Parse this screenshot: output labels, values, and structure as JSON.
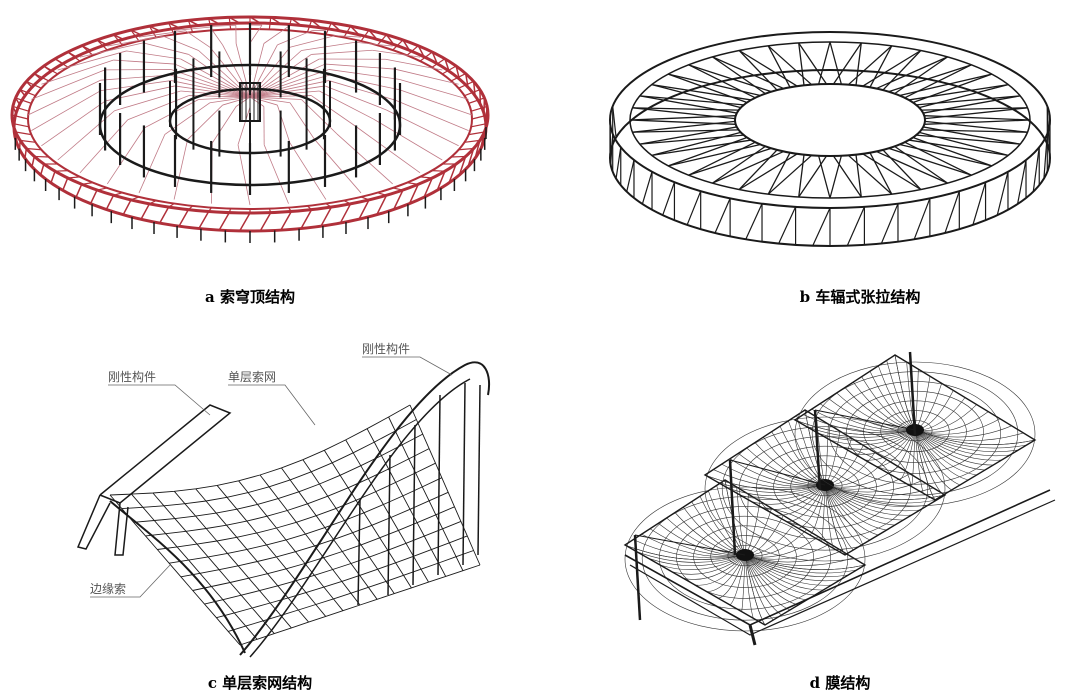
{
  "panels": [
    {
      "id": "a",
      "caption": "a  索穹顶结构"
    },
    {
      "id": "b",
      "caption": "b  车辐式张拉结构"
    },
    {
      "id": "c",
      "caption": "c  单层索网结构",
      "callouts": {
        "rigid_left": "刚性构件",
        "cable_net": "单层索网",
        "rigid_right": "刚性构件",
        "edge_cable": "边缘索"
      }
    },
    {
      "id": "d",
      "caption": "d  膜结构"
    }
  ],
  "colors": {
    "truss_red": "#b0303a",
    "line_dark": "#1a1a1a",
    "cable_light": "#c07a86",
    "membrane": "#333333"
  }
}
